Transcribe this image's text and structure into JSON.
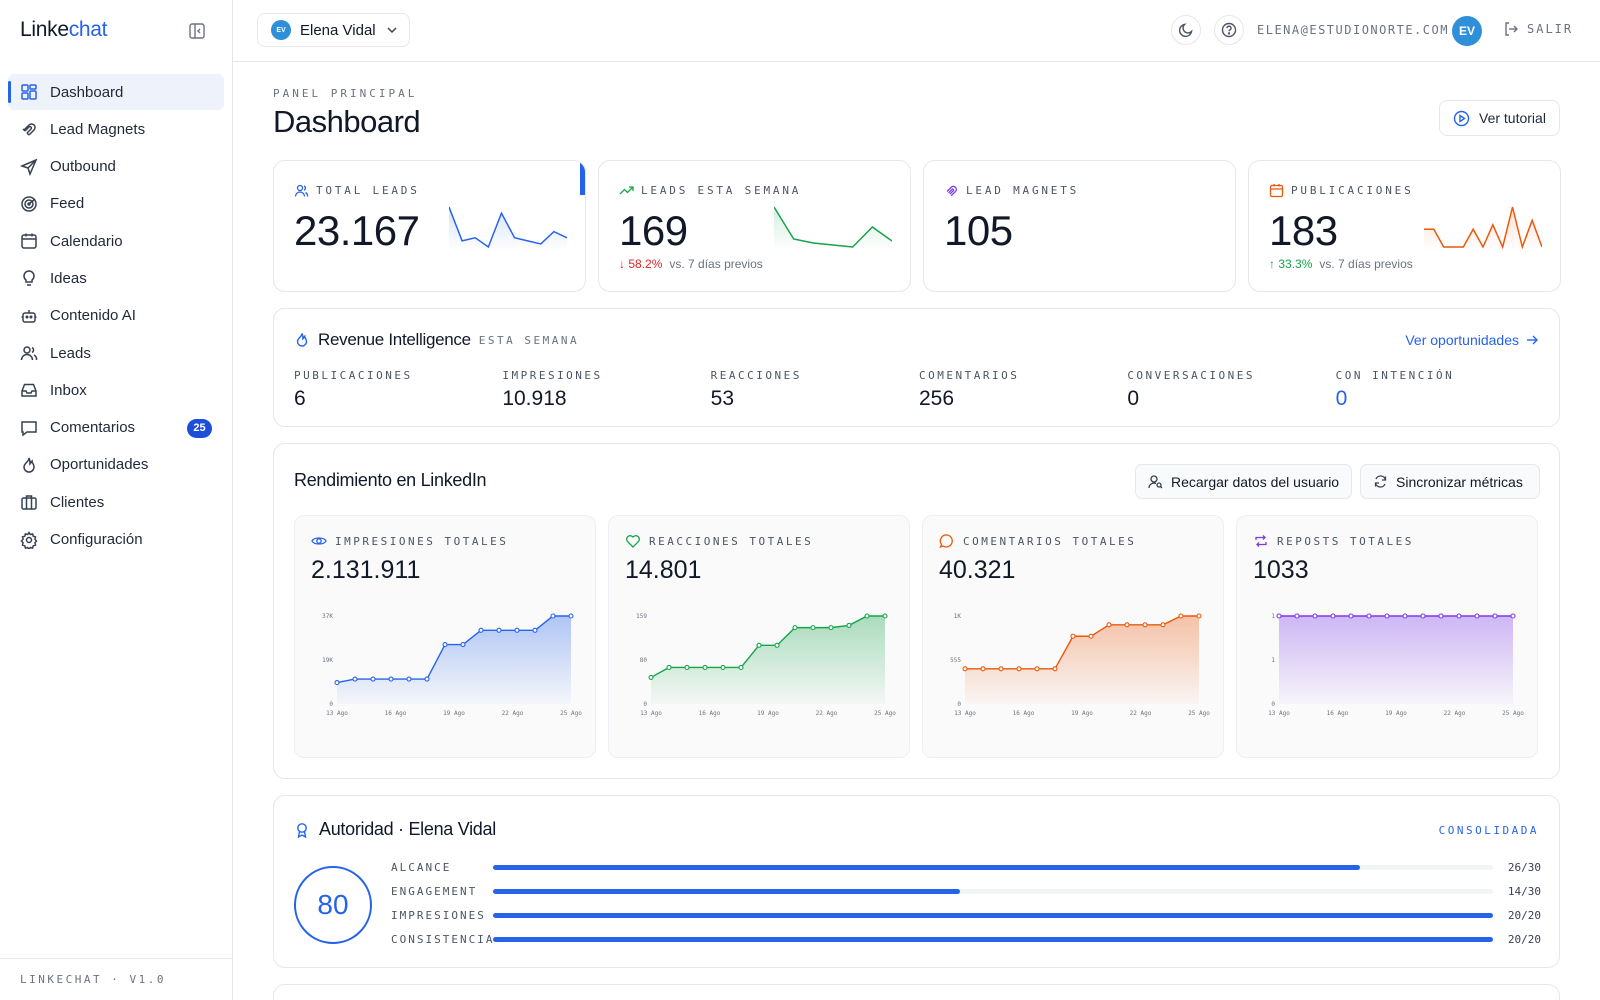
{
  "app": {
    "brand_main": "Linke",
    "brand_accent": "chat",
    "version": "LINKECHAT · V1.0"
  },
  "sidebar": {
    "items": [
      {
        "label": "Dashboard",
        "icon": "dashboard-icon",
        "active": true
      },
      {
        "label": "Lead Magnets",
        "icon": "magnet-icon"
      },
      {
        "label": "Outbound",
        "icon": "send-icon"
      },
      {
        "label": "Feed",
        "icon": "radar-icon"
      },
      {
        "label": "Calendario",
        "icon": "calendar-icon"
      },
      {
        "label": "Ideas",
        "icon": "lightbulb-icon"
      },
      {
        "label": "Contenido AI",
        "icon": "bot-icon"
      },
      {
        "label": "Leads",
        "icon": "users-icon"
      },
      {
        "label": "Inbox",
        "icon": "inbox-icon"
      },
      {
        "label": "Comentarios",
        "icon": "message-icon",
        "badge": "25"
      },
      {
        "label": "Oportunidades",
        "icon": "flame-icon"
      },
      {
        "label": "Clientes",
        "icon": "briefcase-icon"
      },
      {
        "label": "Configuración",
        "icon": "gear-icon"
      }
    ]
  },
  "topbar": {
    "user_initials": "EV",
    "user_name": "Elena Vidal",
    "email": "ELENA@ESTUDIONORTE.COM",
    "logout": "SALIR"
  },
  "header": {
    "eyebrow": "PANEL PRINCIPAL",
    "title": "Dashboard",
    "tutorial": "Ver tutorial"
  },
  "stats": [
    {
      "label": "TOTAL LEADS",
      "value": "23.167",
      "spark": [
        30,
        8,
        10,
        4,
        26,
        10,
        8,
        6,
        14,
        10
      ],
      "color": "#2563eb"
    },
    {
      "label": "LEADS ESTA SEMANA",
      "value": "169",
      "delta": "58.2%",
      "delta_dir": "down",
      "delta_note": "vs. 7 días previos",
      "spark": [
        28,
        12,
        10,
        9,
        8,
        18,
        11
      ],
      "color": "#16a34a"
    },
    {
      "label": "LEAD MAGNETS",
      "value": "105"
    },
    {
      "label": "PUBLICACIONES",
      "value": "183",
      "delta": "33.3%",
      "delta_dir": "up",
      "delta_note": "vs. 7 días previos",
      "spark": [
        10,
        10,
        2,
        2,
        2,
        10,
        2,
        12,
        2,
        20,
        2,
        14,
        2
      ],
      "color": "#ea580c"
    }
  ],
  "revenue": {
    "title": "Revenue Intelligence",
    "tag": "ESTA SEMANA",
    "link": "Ver oportunidades",
    "metrics": [
      {
        "label": "PUBLICACIONES",
        "value": "6"
      },
      {
        "label": "IMPRESIONES",
        "value": "10.918"
      },
      {
        "label": "REACCIONES",
        "value": "53"
      },
      {
        "label": "COMENTARIOS",
        "value": "256"
      },
      {
        "label": "CONVERSACIONES",
        "value": "0"
      },
      {
        "label": "CON INTENCIÓN",
        "value": "0",
        "highlight": true
      }
    ]
  },
  "linkedin": {
    "title": "Rendimiento en LinkedIn",
    "reload": "Recargar datos del usuario",
    "sync": "Sincronizar métricas"
  },
  "chart_data": [
    {
      "type": "area",
      "title": "IMPRESIONES TOTALES",
      "headline": "2.131.911",
      "color": "#2563eb",
      "x_ticks": [
        "13 Ago",
        "16 Ago",
        "19 Ago",
        "22 Ago",
        "25 Ago"
      ],
      "y_ticks": [
        "37K",
        "19K",
        "0"
      ],
      "ylim": [
        0,
        37000
      ],
      "values": [
        9000,
        10500,
        10500,
        10500,
        10500,
        10500,
        25000,
        25000,
        31000,
        31000,
        31000,
        31000,
        37000,
        37000
      ]
    },
    {
      "type": "area",
      "title": "REACCIONES TOTALES",
      "headline": "14.801",
      "color": "#16a34a",
      "x_ticks": [
        "13 Ago",
        "16 Ago",
        "19 Ago",
        "22 Ago",
        "25 Ago"
      ],
      "y_ticks": [
        "159",
        "80",
        "0"
      ],
      "ylim": [
        0,
        159
      ],
      "values": [
        48,
        66,
        66,
        66,
        66,
        66,
        106,
        106,
        138,
        138,
        138,
        142,
        159,
        159
      ]
    },
    {
      "type": "area",
      "title": "COMENTARIOS TOTALES",
      "headline": "40.321",
      "color": "#ea580c",
      "x_ticks": [
        "13 Ago",
        "16 Ago",
        "19 Ago",
        "22 Ago",
        "25 Ago"
      ],
      "y_ticks": [
        "1K",
        "555",
        "0"
      ],
      "ylim": [
        0,
        1000
      ],
      "values": [
        400,
        400,
        400,
        400,
        400,
        400,
        770,
        770,
        900,
        900,
        900,
        900,
        1000,
        1000
      ]
    },
    {
      "type": "area",
      "title": "REPOSTS TOTALES",
      "headline": "1033",
      "color": "#7c3aed",
      "x_ticks": [
        "13 Ago",
        "16 Ago",
        "19 Ago",
        "22 Ago",
        "25 Ago"
      ],
      "y_ticks": [
        "1",
        "1",
        "0"
      ],
      "ylim": [
        0,
        1
      ],
      "values": [
        1,
        1,
        1,
        1,
        1,
        1,
        1,
        1,
        1,
        1,
        1,
        1,
        1,
        1
      ]
    }
  ],
  "authority": {
    "title": "Autoridad · Elena Vidal",
    "status": "CONSOLIDADA",
    "score": "80",
    "bars": [
      {
        "label": "ALCANCE",
        "score": "26/30",
        "fraction": 0.867
      },
      {
        "label": "ENGAGEMENT",
        "score": "14/30",
        "fraction": 0.467
      },
      {
        "label": "IMPRESIONES",
        "score": "20/20",
        "fraction": 1.0
      },
      {
        "label": "CONSISTENCIA",
        "score": "20/20",
        "fraction": 1.0
      }
    ]
  }
}
